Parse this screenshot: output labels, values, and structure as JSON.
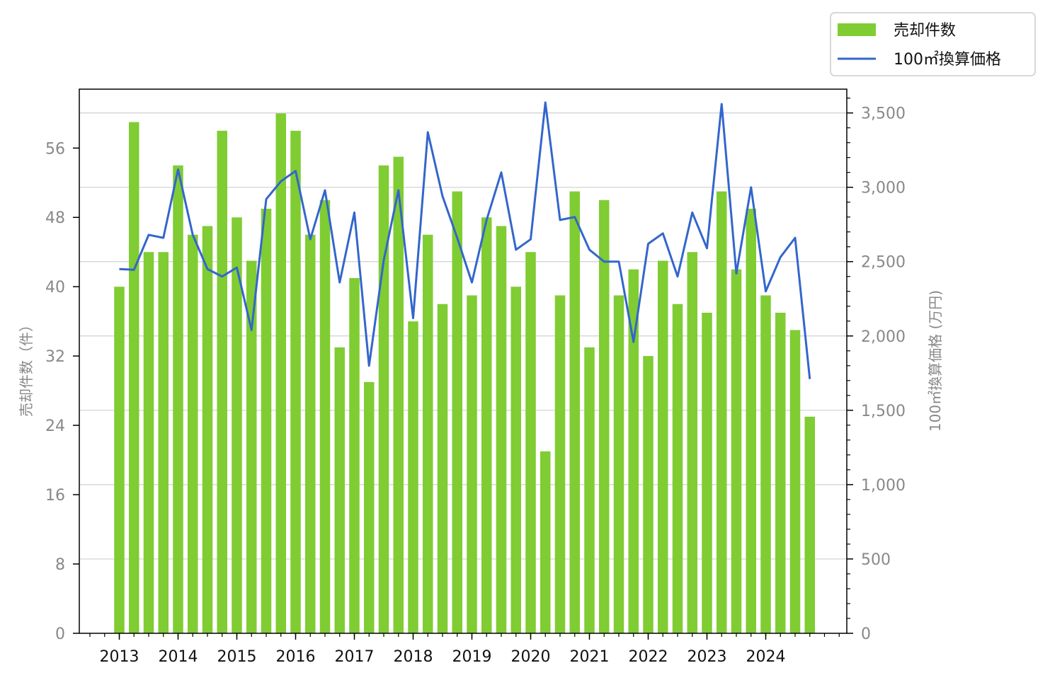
{
  "chart_data": {
    "type": "bar+line",
    "x_labels": [
      "2013",
      "2014",
      "2015",
      "2016",
      "2017",
      "2018",
      "2019",
      "2020",
      "2021",
      "2022",
      "2023",
      "2024"
    ],
    "quarters": [
      "2013Q1",
      "2013Q2",
      "2013Q3",
      "2013Q4",
      "2014Q1",
      "2014Q2",
      "2014Q3",
      "2014Q4",
      "2015Q1",
      "2015Q2",
      "2015Q3",
      "2015Q4",
      "2016Q1",
      "2016Q2",
      "2016Q3",
      "2016Q4",
      "2017Q1",
      "2017Q2",
      "2017Q3",
      "2017Q4",
      "2018Q1",
      "2018Q2",
      "2018Q3",
      "2018Q4",
      "2019Q1",
      "2019Q2",
      "2019Q3",
      "2019Q4",
      "2020Q1",
      "2020Q2",
      "2020Q3",
      "2020Q4",
      "2021Q1",
      "2021Q2",
      "2021Q3",
      "2021Q4",
      "2022Q1",
      "2022Q2",
      "2022Q3",
      "2022Q4",
      "2023Q1",
      "2023Q2",
      "2023Q3",
      "2023Q4",
      "2024Q1",
      "2024Q2",
      "2024Q3",
      "2024Q4"
    ],
    "series": [
      {
        "name": "売却件数",
        "kind": "bar",
        "axis": "left",
        "color": "#80cc33",
        "values": [
          40,
          59,
          44,
          44,
          54,
          46,
          47,
          58,
          48,
          43,
          49,
          60,
          58,
          46,
          50,
          33,
          41,
          29,
          54,
          55,
          36,
          46,
          38,
          51,
          39,
          48,
          47,
          40,
          44,
          21,
          39,
          51,
          33,
          50,
          39,
          42,
          32,
          43,
          38,
          44,
          37,
          51,
          42,
          49,
          39,
          37,
          35,
          25
        ]
      },
      {
        "name": "100㎡換算価格",
        "kind": "line",
        "axis": "right",
        "color": "#3366cc",
        "values": [
          2450,
          2445,
          2680,
          2660,
          3120,
          2680,
          2450,
          2400,
          2460,
          2040,
          2920,
          3040,
          3110,
          2650,
          2980,
          2360,
          2830,
          1800,
          2510,
          2980,
          2120,
          3370,
          2940,
          2660,
          2360,
          2780,
          3100,
          2580,
          2650,
          3570,
          2780,
          2800,
          2580,
          2500,
          2500,
          1960,
          2620,
          2690,
          2400,
          2830,
          2590,
          3560,
          2420,
          3000,
          2300,
          2530,
          2660,
          1710
        ]
      }
    ],
    "y_left": {
      "label": "売却件数（件）",
      "range": [
        0,
        62.8
      ],
      "ticks": [
        "0",
        "8",
        "16",
        "24",
        "32",
        "40",
        "48",
        "56"
      ]
    },
    "y_right": {
      "label": "100㎡換算価格 (万円)",
      "range": [
        0,
        3660
      ],
      "ticks": [
        "0",
        "500",
        "1,000",
        "1,500",
        "2,000",
        "2,500",
        "3,000",
        "3,500"
      ]
    },
    "grid": "horizontal (right axis)",
    "legend_position": "top-right, outside plot"
  }
}
